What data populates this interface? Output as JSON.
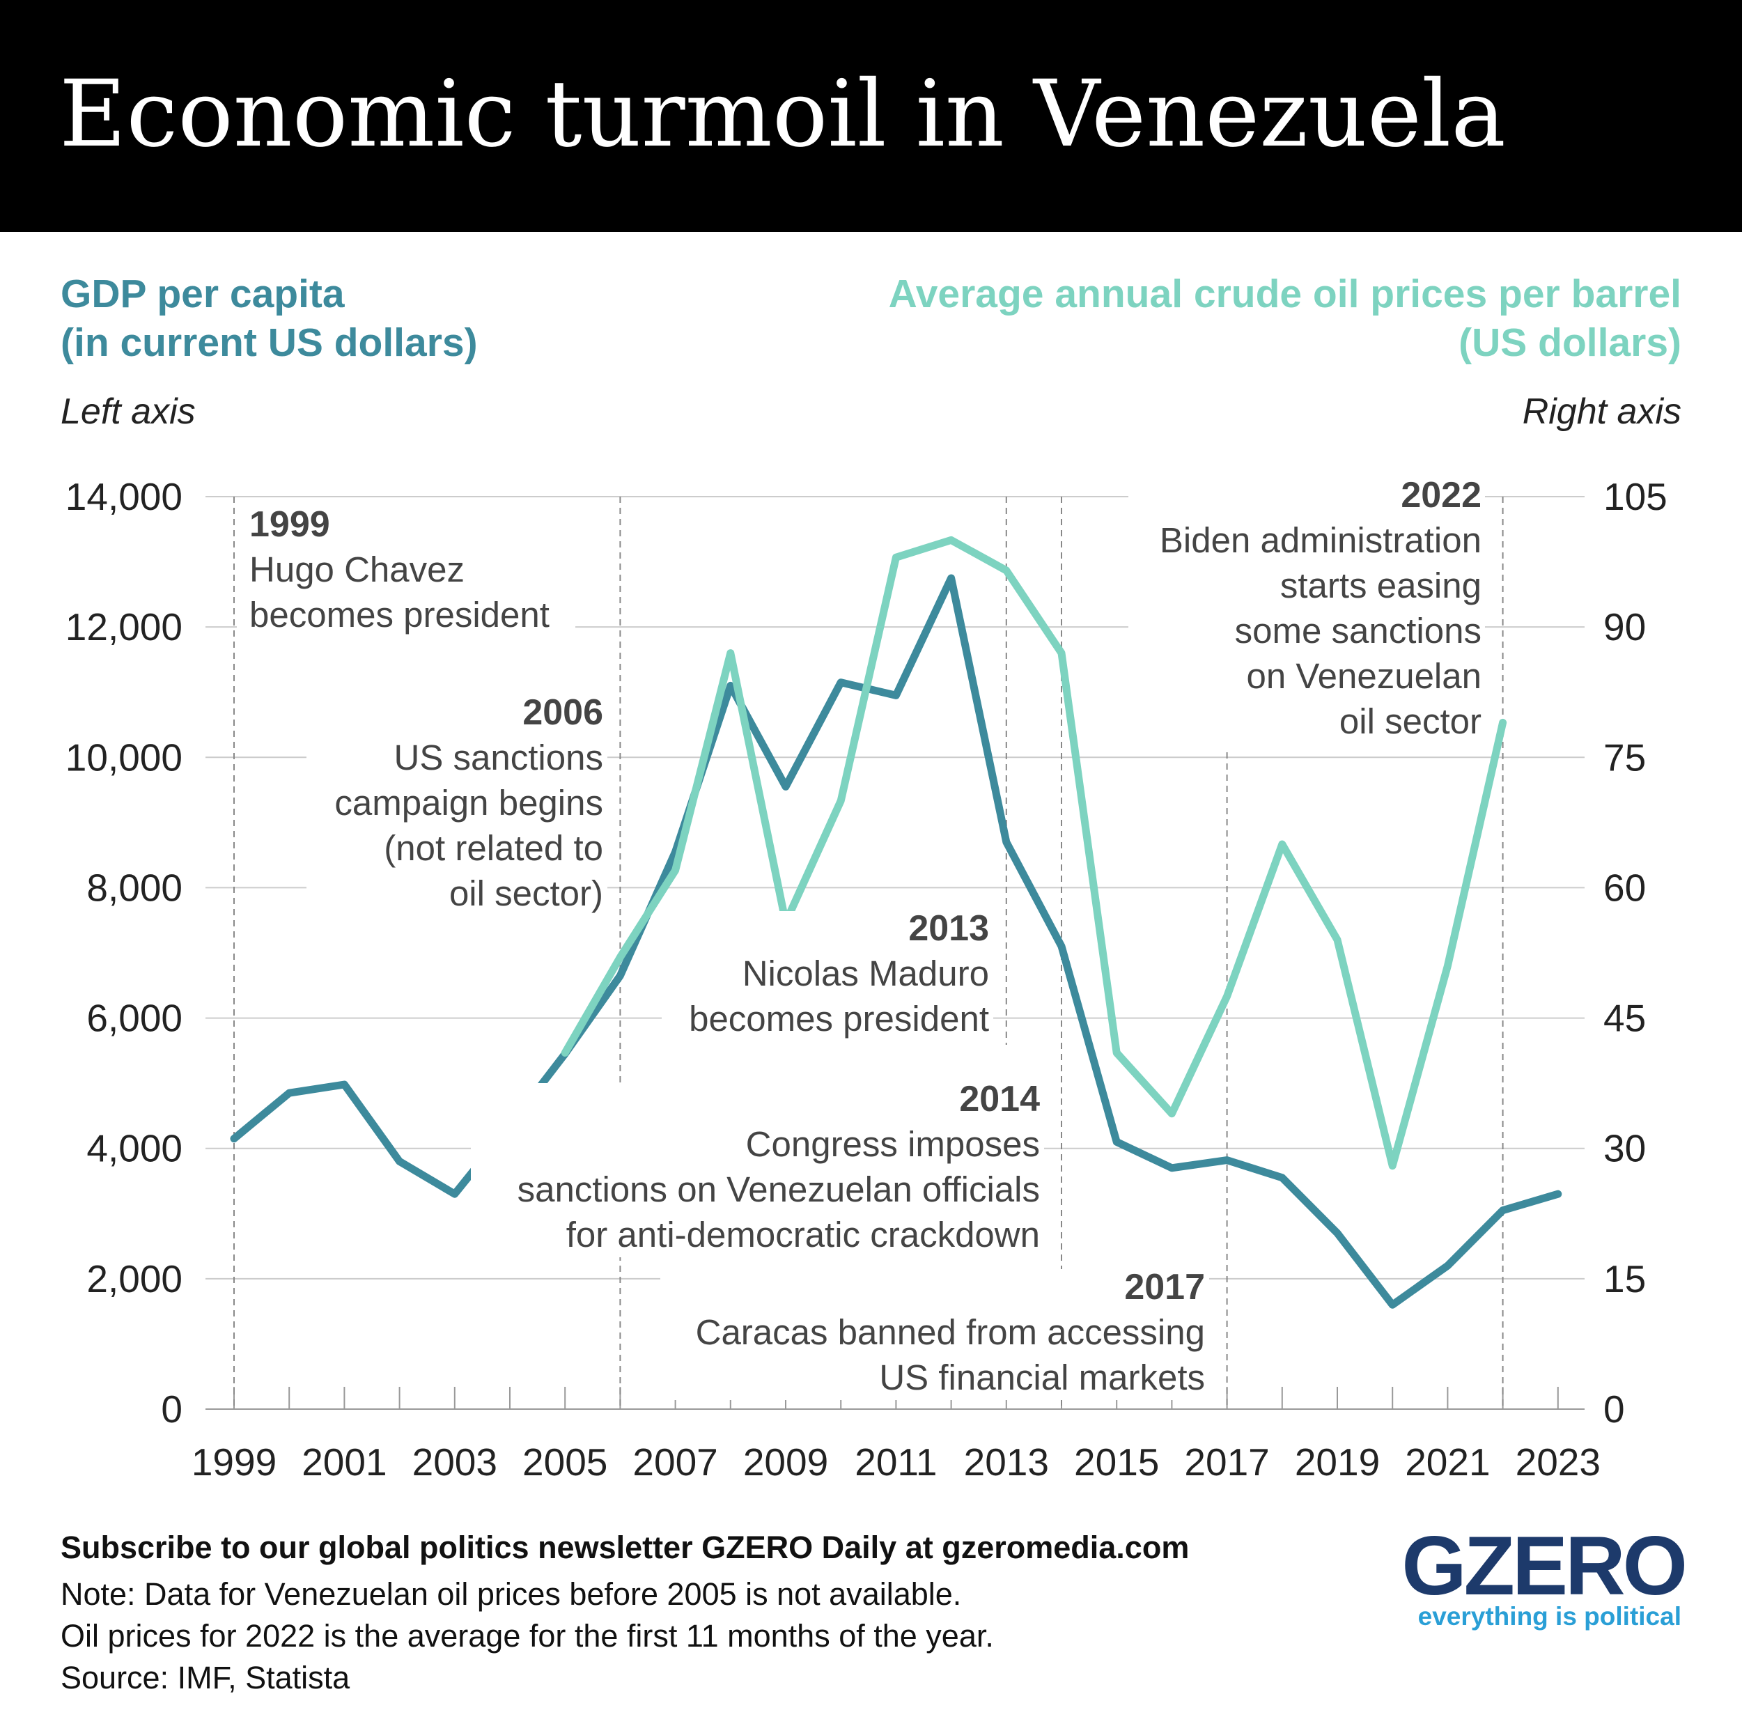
{
  "header": {
    "title": "Economic turmoil in Venezuela"
  },
  "chart_data": {
    "type": "line",
    "title": "Economic turmoil in Venezuela",
    "x": [
      1999,
      2000,
      2001,
      2002,
      2003,
      2004,
      2005,
      2006,
      2007,
      2008,
      2009,
      2010,
      2011,
      2012,
      2013,
      2014,
      2015,
      2016,
      2017,
      2018,
      2019,
      2020,
      2021,
      2022,
      2023
    ],
    "xticks": [
      "1999",
      "2001",
      "2003",
      "2005",
      "2007",
      "2009",
      "2011",
      "2013",
      "2015",
      "2017",
      "2019",
      "2021",
      "2023"
    ],
    "left_axis": {
      "label_line1": "GDP per capita",
      "label_line2": "(in current US dollars)",
      "note": "Left axis",
      "ylim": [
        0,
        14000
      ],
      "ticks": [
        "0",
        "2,000",
        "4,000",
        "6,000",
        "8,000",
        "10,000",
        "12,000",
        "14,000"
      ]
    },
    "right_axis": {
      "label_line1": "Average annual crude oil prices per barrel",
      "label_line2": "(US dollars)",
      "note": "Right axis",
      "ylim": [
        0,
        105
      ],
      "ticks": [
        "0",
        "15",
        "30",
        "45",
        "60",
        "75",
        "90",
        "105"
      ]
    },
    "grid": true,
    "series": [
      {
        "axis": "left",
        "color": "#3d8a9c",
        "x": [
          1999,
          2000,
          2001,
          2002,
          2003,
          2004,
          2005,
          2006,
          2007,
          2008,
          2009,
          2010,
          2011,
          2012,
          2013,
          2014,
          2015,
          2016,
          2017,
          2018,
          2019,
          2020,
          2021,
          2022,
          2023
        ],
        "values": [
          4150,
          4850,
          4980,
          3800,
          3300,
          4350,
          5450,
          6650,
          8550,
          11100,
          9550,
          11150,
          10950,
          12750,
          8700,
          7100,
          4100,
          3700,
          3820,
          3550,
          2700,
          1600,
          2200,
          3050,
          3300
        ]
      },
      {
        "axis": "right",
        "color": "#7dd3c0",
        "x": [
          2005,
          2006,
          2007,
          2008,
          2009,
          2010,
          2011,
          2012,
          2013,
          2014,
          2015,
          2016,
          2017,
          2018,
          2019,
          2020,
          2021,
          2022
        ],
        "values": [
          41,
          52,
          62,
          87,
          56,
          70,
          98,
          100,
          96.5,
          87,
          41,
          34,
          47.5,
          65,
          54,
          28,
          51,
          79
        ]
      }
    ],
    "annotations": [
      {
        "year": "1999",
        "lines": [
          "Hugo Chavez",
          "becomes president"
        ]
      },
      {
        "year": "2006",
        "lines": [
          "US sanctions",
          "campaign begins",
          "(not related to",
          "oil sector)"
        ]
      },
      {
        "year": "2013",
        "lines": [
          "Nicolas Maduro",
          "becomes president"
        ]
      },
      {
        "year": "2014",
        "lines": [
          "Congress imposes",
          "sanctions on Venezuelan officials",
          "for anti-democratic crackdown"
        ]
      },
      {
        "year": "2017",
        "lines": [
          "Caracas banned from accessing",
          "US financial markets"
        ]
      },
      {
        "year": "2022",
        "lines": [
          "Biden administration",
          "starts easing",
          "some sanctions",
          "on Venezuelan",
          "oil sector"
        ]
      }
    ]
  },
  "footer": {
    "subscribe": "Subscribe to our global politics newsletter GZERO Daily at gzeromedia.com",
    "notes": [
      "Note: Data for Venezuelan oil prices before 2005 is not available.",
      "Oil prices for 2022 is the average for the first 11 months of the year.",
      "Source: IMF, Statista"
    ]
  },
  "logo": {
    "wordmark": "GZERO",
    "tagline": "everything is political"
  },
  "colors": {
    "gdp": "#3d8a9c",
    "oil": "#7dd3c0",
    "header_bg": "#000000",
    "logo": "#1d3a6b",
    "tagline": "#2a9fd6"
  }
}
